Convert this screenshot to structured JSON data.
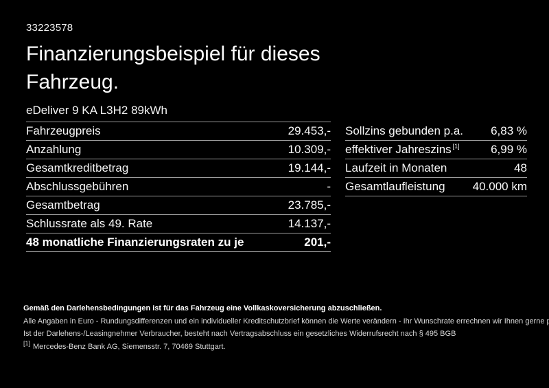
{
  "colors": {
    "background": "#000000",
    "text": "#fdfdfd",
    "separator_line": "#9c9c9c"
  },
  "header": {
    "reference_number": "33223578",
    "title_line1": "Finanzierungsbeispiel für dieses",
    "title_line2": "Fahrzeug.",
    "vehicle_model": "eDeliver 9 KA L3H2 89kWh"
  },
  "finance_table": {
    "rows": [
      {
        "label": "Fahrzeugpreis",
        "value": "29.453,-"
      },
      {
        "label": "Anzahlung",
        "value": "10.309,-"
      },
      {
        "label": "Gesamtkreditbetrag",
        "value": "19.144,-"
      },
      {
        "label": "Abschlussgebühren",
        "value": "-"
      },
      {
        "label": "Gesamtbetrag",
        "value": "23.785,-"
      },
      {
        "label": "Schlussrate als 49. Rate",
        "value": "14.137,-"
      },
      {
        "label": "48 monatliche Finanzierungsraten zu je",
        "value": "201,-"
      }
    ]
  },
  "conditions_table": {
    "rows": [
      {
        "label": "Sollzins gebunden p.a.",
        "value": "6,83 %"
      },
      {
        "label": "effektiver Jahreszins",
        "sup": "[1]",
        "value": "6,99 %"
      },
      {
        "label": "Laufzeit in Monaten",
        "value": "48"
      },
      {
        "label": "Gesamtlaufleistung",
        "value": "40.000 km"
      }
    ]
  },
  "footnotes": {
    "insurance_note": "Gemäß den Darlehensbedingungen ist für das Fahrzeug eine Vollkaskoversicherung abzuschließen.",
    "note_rounding": "Alle Angaben in Euro - Rundungsdifferenzen und ein individueller Kreditschutzbrief können die Werte verändern - Ihr Wunschrate errechnen wir Ihnen gerne persönlich",
    "note_withdrawal": "Ist der Darlehens-/Leasingnehmer Verbraucher, besteht nach Vertragsabschluss ein gesetzliches Widerrufsrecht nach § 495 BGB",
    "footnote_marker": "[1]",
    "footnote_bank": "Mercedes-Benz Bank AG, Siemensstr. 7, 70469 Stuttgart."
  }
}
